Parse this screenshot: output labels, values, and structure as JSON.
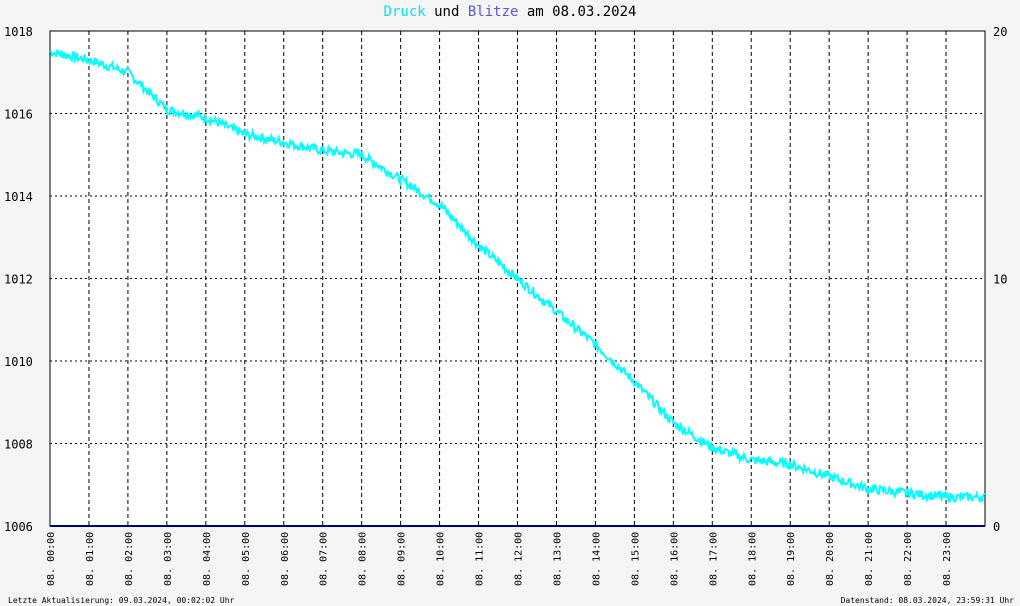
{
  "title": {
    "druck": "Druck",
    "und": " und ",
    "blitze": "Blitze",
    "rest": " am 08.03.2024"
  },
  "footer": {
    "left": "Letzte Aktualisierung: 09.03.2024, 00:02:02 Uhr",
    "right": "Datenstand: 08.03.2024, 23:59:31 Uhr"
  },
  "colors": {
    "druck": "#00ffff",
    "blitze": "#00007f",
    "grid": "#000000",
    "background": "#ffffff"
  },
  "chart_data": {
    "type": "line",
    "grid": true,
    "legend": "title",
    "y_left": {
      "ticks": [
        "1006",
        "1008",
        "1010",
        "1012",
        "1014",
        "1016",
        "1018"
      ],
      "lim": [
        1006,
        1018
      ]
    },
    "y_right": {
      "ticks": [
        "0",
        "10",
        "20"
      ],
      "lim": [
        0,
        20
      ]
    },
    "x_ticks": [
      "08. 00:00",
      "08. 01:00",
      "08. 02:00",
      "08. 03:00",
      "08. 04:00",
      "08. 05:00",
      "08. 06:00",
      "08. 07:00",
      "08. 08:00",
      "08. 09:00",
      "08. 10:00",
      "08. 11:00",
      "08. 12:00",
      "08. 13:00",
      "08. 14:00",
      "08. 15:00",
      "08. 16:00",
      "08. 17:00",
      "08. 18:00",
      "08. 19:00",
      "08. 20:00",
      "08. 21:00",
      "08. 22:00",
      "08. 23:00"
    ],
    "series": [
      {
        "name": "Druck",
        "axis": "left",
        "x_hours": [
          0,
          1,
          2,
          3,
          4,
          5,
          6,
          7,
          8,
          9,
          10,
          11,
          12,
          13,
          14,
          15,
          16,
          17,
          18,
          19,
          20,
          21,
          22,
          23,
          24
        ],
        "values": [
          1017.5,
          1017.3,
          1017.0,
          1016.1,
          1015.9,
          1015.5,
          1015.3,
          1015.1,
          1015.0,
          1014.4,
          1013.8,
          1012.8,
          1012.0,
          1011.2,
          1010.4,
          1009.5,
          1008.5,
          1007.9,
          1007.6,
          1007.5,
          1007.2,
          1006.9,
          1006.8,
          1006.7,
          1006.7
        ]
      },
      {
        "name": "Blitze",
        "axis": "right",
        "x_hours": [
          0,
          24
        ],
        "values": [
          0,
          0
        ]
      }
    ]
  }
}
